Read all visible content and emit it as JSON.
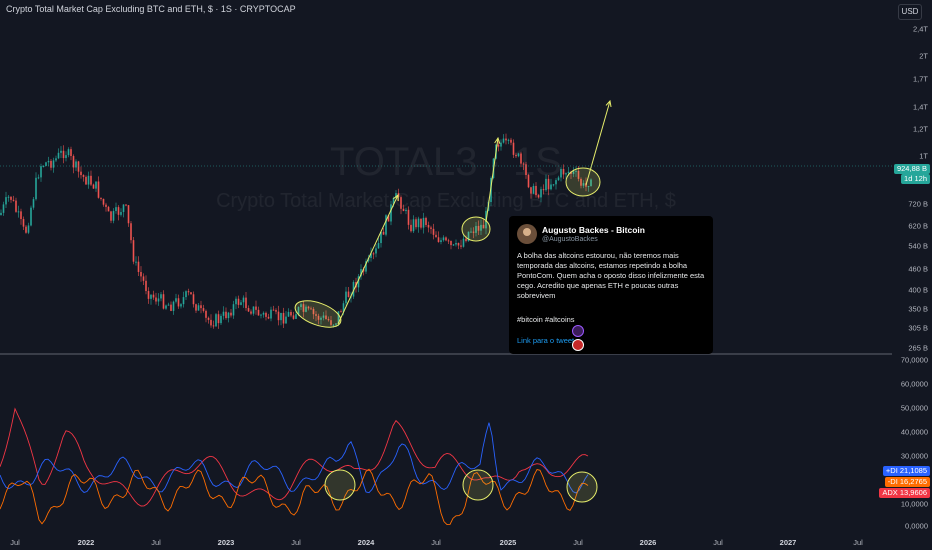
{
  "header": {
    "title": "Crypto Total Market Cap Excluding BTC and ETH, $ · 1S · CRYPTOCAP",
    "currency": "USD"
  },
  "watermark": {
    "symbol": "TOTAL3 · 1S",
    "name": "Crypto Total Market Cap Excluding BTC and ETH, $"
  },
  "price_axis": [
    "2,4T",
    "2T",
    "1,7T",
    "1,4T",
    "1,2T",
    "1T",
    "720 B",
    "620 B",
    "540 B",
    "460 B",
    "400 B",
    "350 B",
    "305 B",
    "265 B"
  ],
  "price_tag": {
    "value": "924,88 B",
    "countdown": "1d 12h"
  },
  "indicator_axis": [
    "70,0000",
    "60,0000",
    "50,0000",
    "40,0000",
    "30,0000",
    "20,0000",
    "10,0000",
    "0,0000"
  ],
  "indicator_tags": [
    {
      "label": "+DI",
      "value": "21,1085",
      "color": "#2962ff"
    },
    {
      "label": "-DI",
      "value": "16,2765",
      "color": "#ff6d00"
    },
    {
      "label": "ADX",
      "value": "13,9606",
      "color": "#f23645"
    }
  ],
  "time_axis": [
    {
      "label": "Jul",
      "bold": false
    },
    {
      "label": "2022",
      "bold": true
    },
    {
      "label": "Jul",
      "bold": false
    },
    {
      "label": "2023",
      "bold": true
    },
    {
      "label": "Jul",
      "bold": false
    },
    {
      "label": "2024",
      "bold": true
    },
    {
      "label": "Jul",
      "bold": false
    },
    {
      "label": "2025",
      "bold": true
    },
    {
      "label": "Jul",
      "bold": false
    },
    {
      "label": "2026",
      "bold": true
    },
    {
      "label": "Jul",
      "bold": false
    },
    {
      "label": "2027",
      "bold": true
    },
    {
      "label": "Jul",
      "bold": false
    }
  ],
  "tweet": {
    "author": "Augusto Backes - Bitcoin",
    "handle": "@AugustoBackes",
    "body": "A bolha das altcoins estourou, não teremos mais temporada das altcoins, estamos repetindo a bolha PontoCom. Quem acha o oposto disso infelizmente esta cego. Acredito que apenas ETH e poucas outras sobrevivem",
    "hashtags": "#bitcoin #altcoins",
    "link": "Link para o tweet"
  },
  "colors": {
    "background": "#131722",
    "up": "#26a69a",
    "down": "#ef5350",
    "annotation": "#e6ed6b",
    "price_line": "#26a69a"
  }
}
